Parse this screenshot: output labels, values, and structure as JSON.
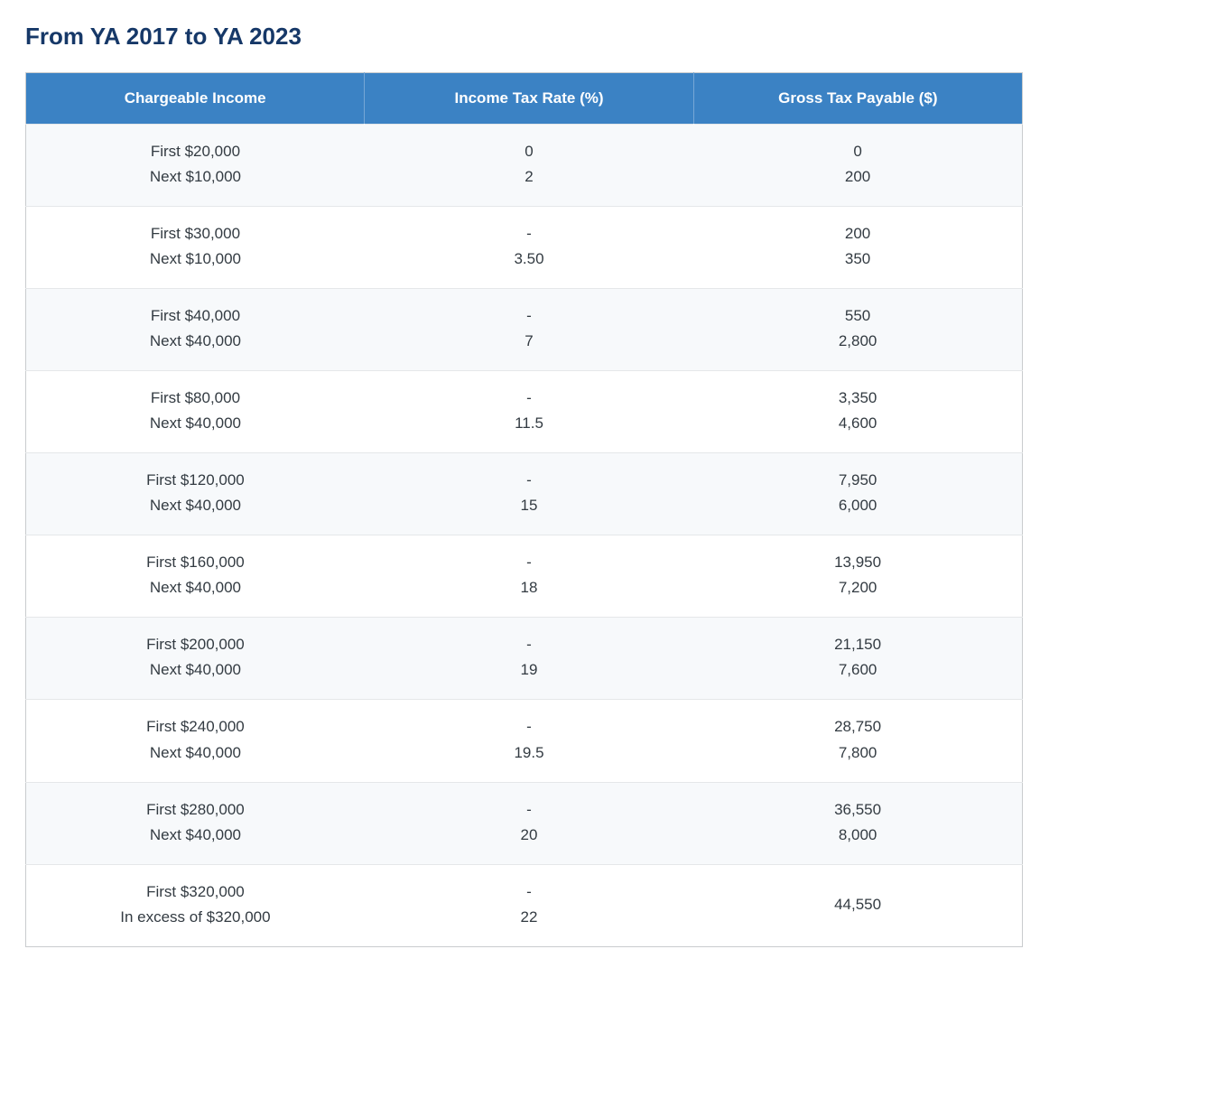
{
  "title": "From YA 2017 to YA 2023",
  "columns": [
    "Chargeable Income",
    "Income Tax Rate (%)",
    "Gross Tax Payable ($)"
  ],
  "styling": {
    "heading_color": "#163868",
    "header_bg": "#3b82c4",
    "text_color": "#333b42",
    "border_color": "#c9ccce",
    "stripe_color": "#f7f9fb",
    "heading_fontsize": 26,
    "cell_fontsize": 17
  },
  "rows": [
    {
      "income": [
        "First $20,000",
        "Next $10,000"
      ],
      "rate": [
        "0",
        "2"
      ],
      "gross": [
        "0",
        "200"
      ]
    },
    {
      "income": [
        "First $30,000",
        "Next $10,000"
      ],
      "rate": [
        "-",
        "3.50"
      ],
      "gross": [
        "200",
        "350"
      ]
    },
    {
      "income": [
        "First $40,000",
        "Next $40,000"
      ],
      "rate": [
        "-",
        "7"
      ],
      "gross": [
        "550",
        "2,800"
      ]
    },
    {
      "income": [
        "First $80,000",
        "Next $40,000"
      ],
      "rate": [
        "-",
        "11.5"
      ],
      "gross": [
        "3,350",
        "4,600"
      ]
    },
    {
      "income": [
        "First $120,000",
        "Next $40,000"
      ],
      "rate": [
        "-",
        "15"
      ],
      "gross": [
        "7,950",
        "6,000"
      ]
    },
    {
      "income": [
        "First $160,000",
        "Next $40,000"
      ],
      "rate": [
        "-",
        "18"
      ],
      "gross": [
        "13,950",
        "7,200"
      ]
    },
    {
      "income": [
        "First $200,000",
        "Next $40,000"
      ],
      "rate": [
        "-",
        "19"
      ],
      "gross": [
        "21,150",
        "7,600"
      ]
    },
    {
      "income": [
        "First $240,000",
        "Next $40,000"
      ],
      "rate": [
        "-",
        "19.5"
      ],
      "gross": [
        "28,750",
        "7,800"
      ]
    },
    {
      "income": [
        "First $280,000",
        "Next $40,000"
      ],
      "rate": [
        "-",
        "20"
      ],
      "gross": [
        "36,550",
        "8,000"
      ]
    },
    {
      "income": [
        "First $320,000",
        "In excess of $320,000"
      ],
      "rate": [
        "-",
        "22"
      ],
      "gross": [
        "44,550",
        ""
      ]
    }
  ]
}
